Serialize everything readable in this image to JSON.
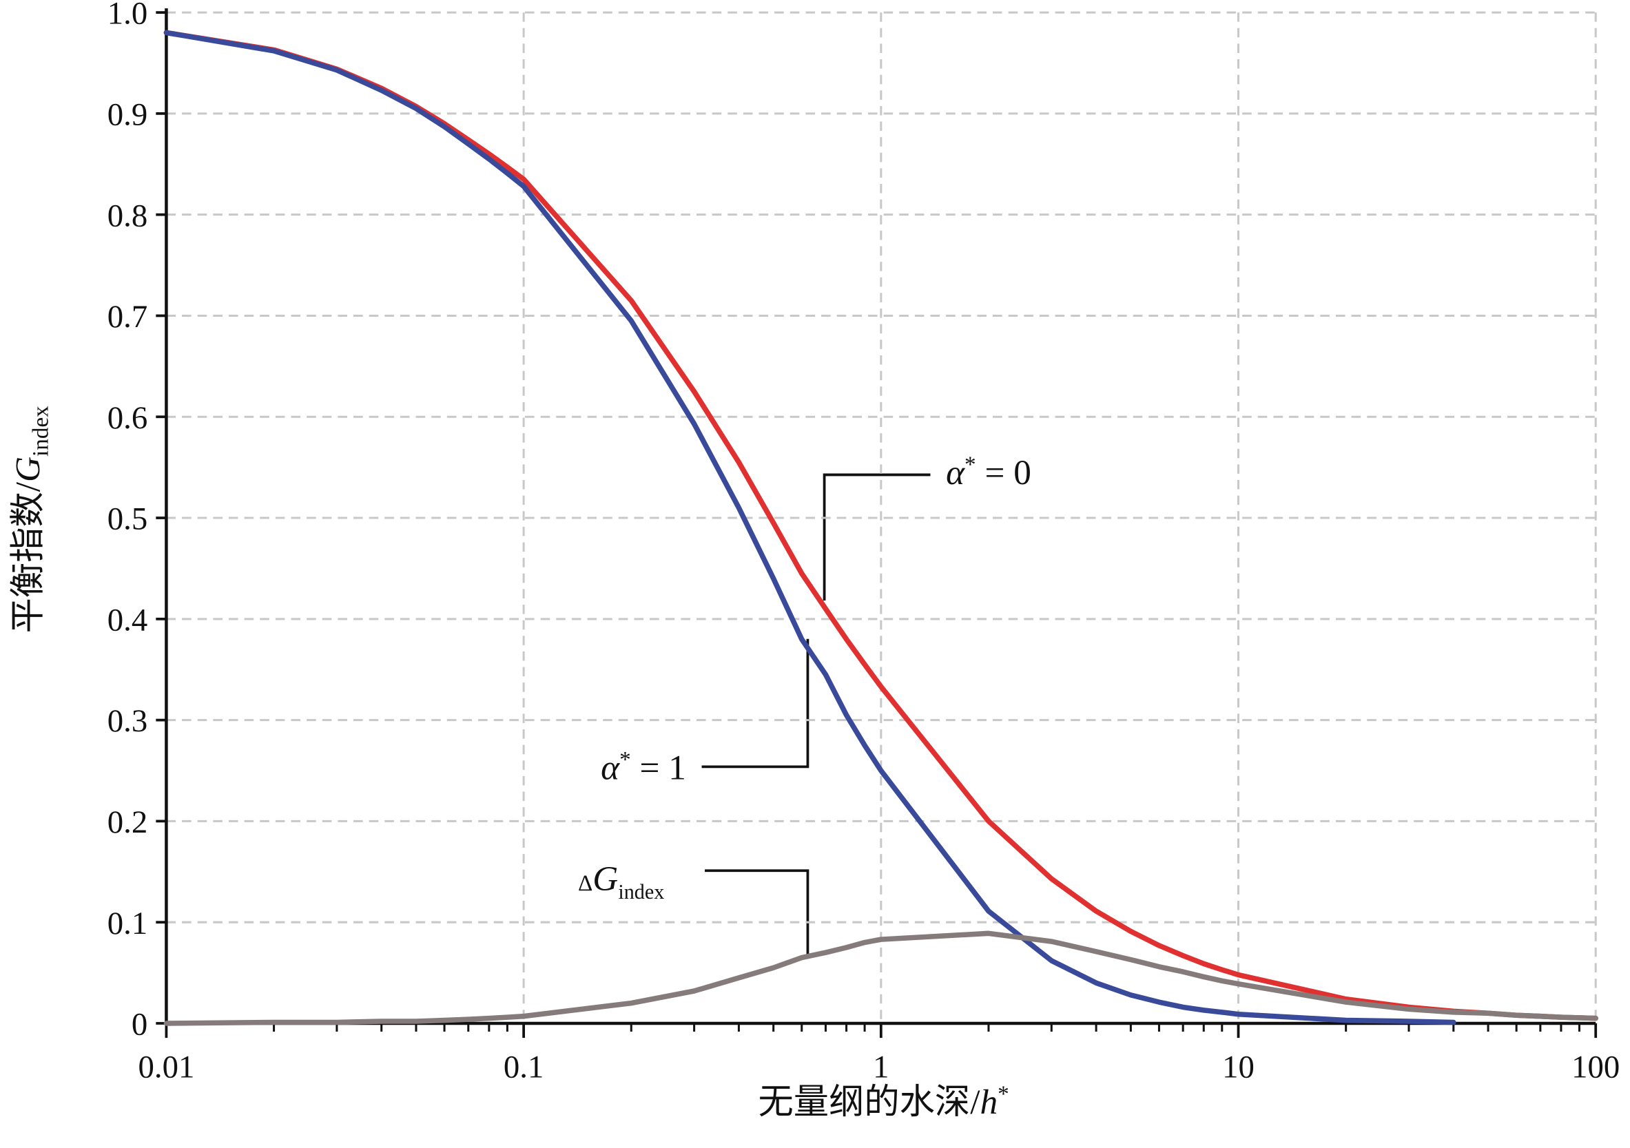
{
  "chart_data": {
    "type": "line",
    "x_label_parts": [
      "无量纲的水深/",
      "h",
      "*"
    ],
    "y_label_parts": [
      "平衡指数/",
      "G",
      "index"
    ],
    "x": [
      0.01,
      0.02,
      0.03,
      0.04,
      0.05,
      0.06,
      0.07,
      0.08,
      0.09,
      0.1,
      0.2,
      0.3,
      0.4,
      0.5,
      0.6,
      0.7,
      0.8,
      0.9,
      1,
      2,
      3,
      4,
      5,
      6,
      7,
      8,
      9,
      10,
      20,
      30,
      40,
      50,
      60,
      70,
      80,
      90,
      100
    ],
    "series": [
      {
        "label_parts": [
          "α",
          "*",
          " = 0"
        ],
        "color": "#e03030",
        "values": [
          0.98,
          0.963,
          0.944,
          0.925,
          0.907,
          0.89,
          0.874,
          0.86,
          0.847,
          0.835,
          0.715,
          0.625,
          0.555,
          0.495,
          0.445,
          0.41,
          0.38,
          0.355,
          0.333,
          0.2,
          0.143,
          0.111,
          0.091,
          0.077,
          0.067,
          0.059,
          0.053,
          0.048,
          0.024,
          0.016,
          0.012,
          0.01,
          0.008,
          0.007,
          0.006,
          0.0055,
          0.005
        ]
      },
      {
        "label_parts": [
          "α",
          "*",
          " = 1"
        ],
        "color": "#3a4a9a",
        "values": [
          0.98,
          0.962,
          0.943,
          0.923,
          0.905,
          0.887,
          0.87,
          0.855,
          0.841,
          0.828,
          0.695,
          0.593,
          0.51,
          0.44,
          0.38,
          0.345,
          0.305,
          0.275,
          0.25,
          0.111,
          0.062,
          0.04,
          0.028,
          0.021,
          0.016,
          0.013,
          0.011,
          0.009,
          0.003,
          0.002,
          0.001,
          null,
          null,
          null,
          null,
          null,
          null
        ]
      },
      {
        "label_parts": [
          "Δ",
          "G",
          "index"
        ],
        "color": "#857b7b",
        "values": [
          0,
          0.001,
          0.001,
          0.002,
          0.002,
          0.003,
          0.004,
          0.005,
          0.006,
          0.007,
          0.02,
          0.032,
          0.045,
          0.055,
          0.065,
          0.07,
          0.075,
          0.08,
          0.083,
          0.089,
          0.081,
          0.071,
          0.063,
          0.056,
          0.051,
          0.046,
          0.042,
          0.039,
          0.021,
          0.014,
          0.011,
          0.01,
          0.008,
          0.007,
          0.006,
          0.0055,
          0.005
        ]
      }
    ],
    "x_log": true,
    "xlim": [
      0.01,
      100
    ],
    "xticks": [
      0.01,
      0.1,
      1,
      10,
      100
    ],
    "ylim": [
      0,
      1
    ],
    "yticks": [
      0,
      0.1,
      0.2,
      0.3,
      0.4,
      0.5,
      0.6,
      0.7,
      0.8,
      0.9,
      {
        "value": 1,
        "label": "1.0"
      }
    ],
    "grid": true
  }
}
